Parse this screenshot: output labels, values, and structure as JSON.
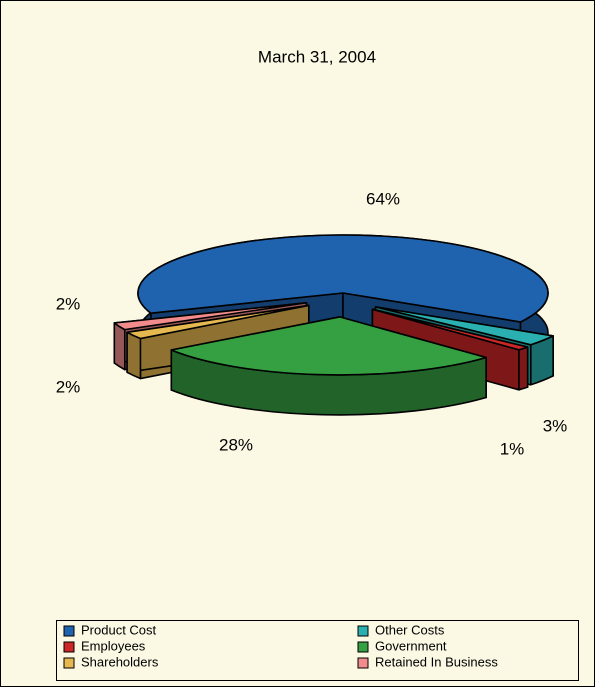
{
  "chart_data": {
    "type": "pie",
    "title": "March 31, 2004",
    "categories": [
      "Product Cost",
      "Other Costs",
      "Employees",
      "Government",
      "Shareholders",
      "Retained In Business"
    ],
    "values": [
      64,
      3,
      1,
      28,
      2,
      2
    ],
    "value_labels": [
      "64%",
      "3%",
      "1%",
      "28%",
      "2%",
      "2%"
    ],
    "colors": [
      "#1f62ae",
      "#2ab0b0",
      "#cc2626",
      "#35a042",
      "#e6b850",
      "#f28c8c"
    ],
    "legend": "bottom"
  }
}
